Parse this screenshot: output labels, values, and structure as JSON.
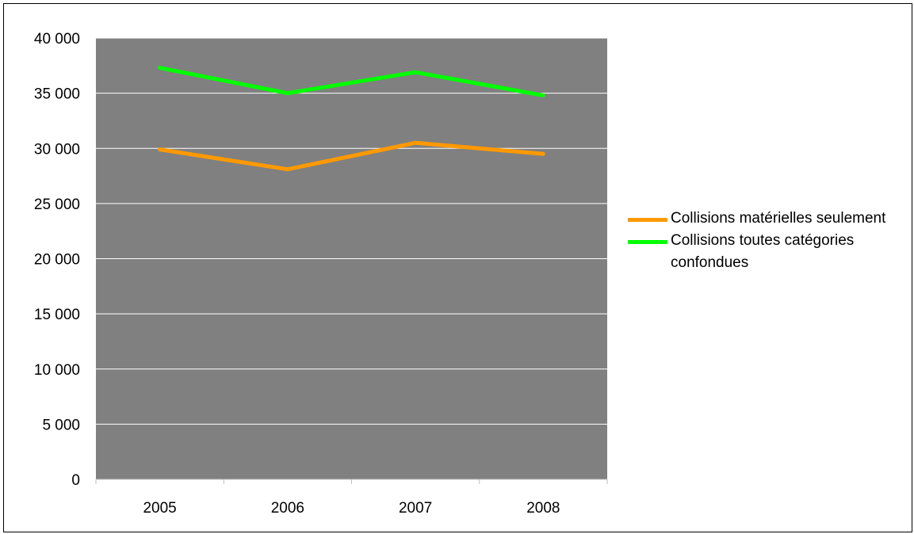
{
  "chart_data": {
    "type": "line",
    "categories": [
      "2005",
      "2006",
      "2007",
      "2008"
    ],
    "series": [
      {
        "name": "Collisions matérielles seulement",
        "color": "#ff9900",
        "values": [
          29900,
          28100,
          30500,
          29500
        ]
      },
      {
        "name": "Collisions toutes catégories confondues",
        "color": "#00ff00",
        "values": [
          37300,
          35000,
          36900,
          34800
        ]
      }
    ],
    "ylim": [
      0,
      40000
    ],
    "yticks": [
      "0",
      "5 000",
      "10 000",
      "15 000",
      "20 000",
      "25 000",
      "30 000",
      "35 000",
      "40 000"
    ],
    "title": "",
    "xlabel": "",
    "ylabel": "",
    "grid": true,
    "plot_background": "#808080",
    "legend_position": "right"
  }
}
